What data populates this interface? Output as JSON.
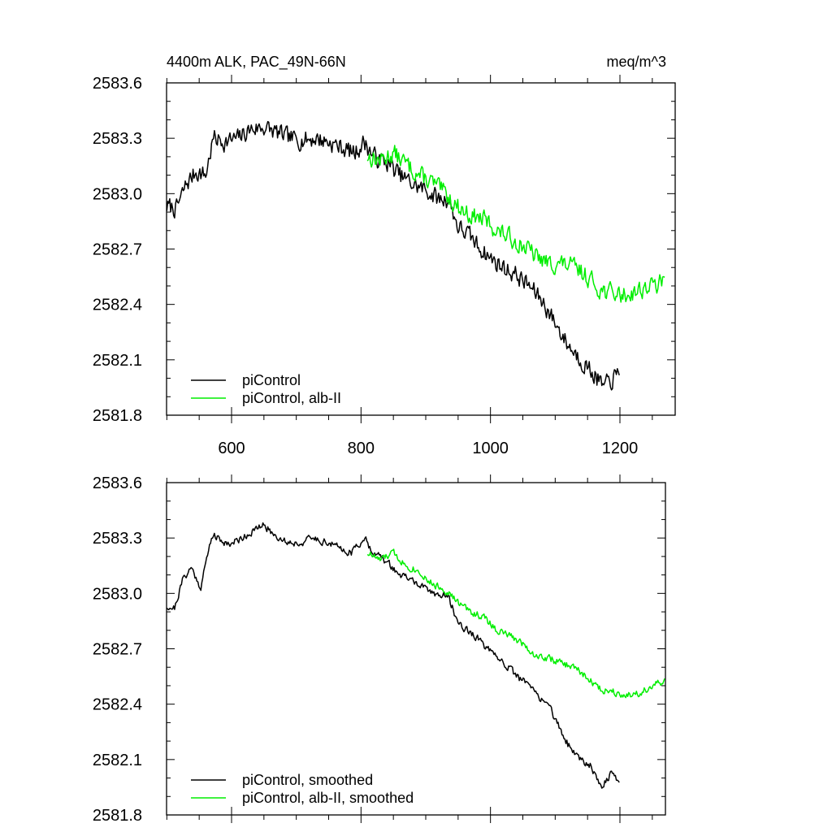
{
  "chart_data": [
    {
      "type": "line",
      "title": "4400m ALK, PAC_49N-66N",
      "units": "meq/m^3",
      "xlim": [
        500,
        1270
      ],
      "ylim": [
        2581.8,
        2583.6
      ],
      "x_ticks": [
        600,
        800,
        1000,
        1200
      ],
      "x_tick_labels": [
        "600",
        "800",
        "1000",
        "1200"
      ],
      "y_ticks": [
        2581.8,
        2582.1,
        2582.4,
        2582.7,
        2583.0,
        2583.3,
        2583.6
      ],
      "y_tick_labels": [
        "2581.8",
        "2582.1",
        "2582.4",
        "2582.7",
        "2583.0",
        "2583.3",
        "2583.6"
      ],
      "legend_position": "bottom-left",
      "series": [
        {
          "name": "piControl",
          "color": "#000000",
          "x_start": 500,
          "x_end": 1200,
          "anchors": [
            [
              500,
              2582.93
            ],
            [
              515,
              2582.92
            ],
            [
              530,
              2583.05
            ],
            [
              545,
              2583.12
            ],
            [
              560,
              2583.1
            ],
            [
              572,
              2583.3
            ],
            [
              590,
              2583.28
            ],
            [
              610,
              2583.3
            ],
            [
              630,
              2583.35
            ],
            [
              650,
              2583.36
            ],
            [
              670,
              2583.33
            ],
            [
              690,
              2583.3
            ],
            [
              710,
              2583.29
            ],
            [
              730,
              2583.3
            ],
            [
              750,
              2583.28
            ],
            [
              770,
              2583.25
            ],
            [
              790,
              2583.22
            ],
            [
              805,
              2583.28
            ],
            [
              820,
              2583.2
            ],
            [
              840,
              2583.17
            ],
            [
              860,
              2583.1
            ],
            [
              880,
              2583.05
            ],
            [
              900,
              2583.02
            ],
            [
              920,
              2582.97
            ],
            [
              935,
              2582.97
            ],
            [
              950,
              2582.82
            ],
            [
              965,
              2582.78
            ],
            [
              980,
              2582.72
            ],
            [
              1000,
              2582.65
            ],
            [
              1020,
              2582.6
            ],
            [
              1040,
              2582.56
            ],
            [
              1060,
              2582.5
            ],
            [
              1080,
              2582.42
            ],
            [
              1100,
              2582.3
            ],
            [
              1120,
              2582.18
            ],
            [
              1140,
              2582.1
            ],
            [
              1160,
              2582.02
            ],
            [
              1175,
              2581.95
            ],
            [
              1190,
              2582.0
            ],
            [
              1200,
              2582.02
            ]
          ],
          "noise_amplitude": 0.045,
          "seed": 7
        },
        {
          "name": "piControl, alb-II",
          "color": "#00ee00",
          "x_start": 810,
          "x_end": 1270,
          "anchors": [
            [
              810,
              2583.2
            ],
            [
              830,
              2583.18
            ],
            [
              850,
              2583.22
            ],
            [
              870,
              2583.16
            ],
            [
              890,
              2583.1
            ],
            [
              910,
              2583.06
            ],
            [
              930,
              2583.0
            ],
            [
              950,
              2582.93
            ],
            [
              970,
              2582.88
            ],
            [
              990,
              2582.86
            ],
            [
              1010,
              2582.8
            ],
            [
              1030,
              2582.76
            ],
            [
              1050,
              2582.72
            ],
            [
              1070,
              2582.66
            ],
            [
              1090,
              2582.62
            ],
            [
              1110,
              2582.62
            ],
            [
              1130,
              2582.6
            ],
            [
              1150,
              2582.55
            ],
            [
              1170,
              2582.48
            ],
            [
              1190,
              2582.46
            ],
            [
              1210,
              2582.45
            ],
            [
              1230,
              2582.48
            ],
            [
              1250,
              2582.5
            ],
            [
              1270,
              2582.52
            ]
          ],
          "noise_amplitude": 0.045,
          "seed": 13
        }
      ]
    },
    {
      "type": "line",
      "title": "",
      "xlim": [
        500,
        1270
      ],
      "ylim": [
        2581.8,
        2583.6
      ],
      "x_ticks": [
        600,
        800,
        1000,
        1200
      ],
      "y_ticks": [
        2581.8,
        2582.1,
        2582.4,
        2582.7,
        2583.0,
        2583.3,
        2583.6
      ],
      "y_tick_labels": [
        "2581.8",
        "2582.1",
        "2582.4",
        "2582.7",
        "2583.0",
        "2583.3",
        "2583.6"
      ],
      "legend_position": "bottom-left",
      "series": [
        {
          "name": "piControl, smoothed",
          "color": "#000000",
          "x_start": 500,
          "x_end": 1200,
          "anchors": [
            [
              500,
              2582.93
            ],
            [
              512,
              2582.92
            ],
            [
              525,
              2583.08
            ],
            [
              538,
              2583.14
            ],
            [
              552,
              2583.03
            ],
            [
              570,
              2583.32
            ],
            [
              585,
              2583.28
            ],
            [
              600,
              2583.27
            ],
            [
              615,
              2583.3
            ],
            [
              630,
              2583.33
            ],
            [
              650,
              2583.37
            ],
            [
              665,
              2583.32
            ],
            [
              685,
              2583.28
            ],
            [
              705,
              2583.27
            ],
            [
              725,
              2583.3
            ],
            [
              745,
              2583.28
            ],
            [
              765,
              2583.25
            ],
            [
              785,
              2583.22
            ],
            [
              805,
              2583.3
            ],
            [
              820,
              2583.22
            ],
            [
              840,
              2583.17
            ],
            [
              860,
              2583.1
            ],
            [
              880,
              2583.07
            ],
            [
              900,
              2583.02
            ],
            [
              915,
              2583.0
            ],
            [
              935,
              2582.98
            ],
            [
              950,
              2582.84
            ],
            [
              965,
              2582.8
            ],
            [
              985,
              2582.74
            ],
            [
              1005,
              2582.66
            ],
            [
              1020,
              2582.63
            ],
            [
              1040,
              2582.55
            ],
            [
              1055,
              2582.52
            ],
            [
              1075,
              2582.44
            ],
            [
              1090,
              2582.4
            ],
            [
              1105,
              2582.28
            ],
            [
              1120,
              2582.18
            ],
            [
              1140,
              2582.1
            ],
            [
              1155,
              2582.07
            ],
            [
              1172,
              2581.95
            ],
            [
              1185,
              2582.02
            ],
            [
              1200,
              2581.98
            ]
          ],
          "noise_amplitude": 0.018,
          "seed": 21
        },
        {
          "name": "piControl, alb-II, smoothed",
          "color": "#00ee00",
          "x_start": 810,
          "x_end": 1270,
          "anchors": [
            [
              810,
              2583.22
            ],
            [
              830,
              2583.18
            ],
            [
              850,
              2583.22
            ],
            [
              870,
              2583.15
            ],
            [
              890,
              2583.12
            ],
            [
              910,
              2583.05
            ],
            [
              930,
              2583.02
            ],
            [
              950,
              2582.95
            ],
            [
              970,
              2582.9
            ],
            [
              990,
              2582.87
            ],
            [
              1010,
              2582.8
            ],
            [
              1030,
              2582.77
            ],
            [
              1050,
              2582.73
            ],
            [
              1070,
              2582.66
            ],
            [
              1090,
              2582.65
            ],
            [
              1110,
              2582.62
            ],
            [
              1130,
              2582.6
            ],
            [
              1150,
              2582.54
            ],
            [
              1170,
              2582.48
            ],
            [
              1190,
              2582.47
            ],
            [
              1210,
              2582.45
            ],
            [
              1230,
              2582.46
            ],
            [
              1250,
              2582.5
            ],
            [
              1270,
              2582.52
            ]
          ],
          "noise_amplitude": 0.018,
          "seed": 33
        }
      ]
    }
  ]
}
